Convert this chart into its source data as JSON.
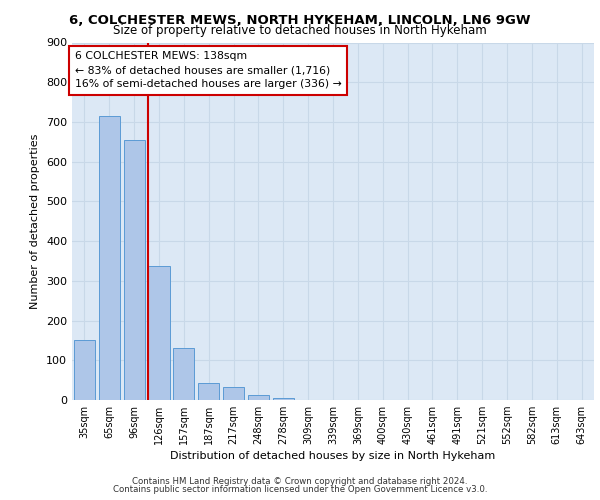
{
  "title1": "6, COLCHESTER MEWS, NORTH HYKEHAM, LINCOLN, LN6 9GW",
  "title2": "Size of property relative to detached houses in North Hykeham",
  "xlabel": "Distribution of detached houses by size in North Hykeham",
  "ylabel": "Number of detached properties",
  "bar_labels": [
    "35sqm",
    "65sqm",
    "96sqm",
    "126sqm",
    "157sqm",
    "187sqm",
    "217sqm",
    "248sqm",
    "278sqm",
    "309sqm",
    "339sqm",
    "369sqm",
    "400sqm",
    "430sqm",
    "461sqm",
    "491sqm",
    "521sqm",
    "552sqm",
    "582sqm",
    "613sqm",
    "643sqm"
  ],
  "bar_values": [
    152,
    714,
    655,
    338,
    130,
    44,
    32,
    13,
    5,
    0,
    0,
    0,
    0,
    0,
    0,
    0,
    0,
    0,
    0,
    0,
    0
  ],
  "bar_color": "#aec6e8",
  "bar_edge_color": "#5b9bd5",
  "vline_color": "#cc0000",
  "vline_pos": 2.55,
  "annotation_text": "6 COLCHESTER MEWS: 138sqm\n← 83% of detached houses are smaller (1,716)\n16% of semi-detached houses are larger (336) →",
  "annotation_box_color": "#ffffff",
  "annotation_box_edge": "#cc0000",
  "ylim": [
    0,
    900
  ],
  "yticks": [
    0,
    100,
    200,
    300,
    400,
    500,
    600,
    700,
    800,
    900
  ],
  "grid_color": "#c8d8e8",
  "bg_color": "#dce8f5",
  "footer1": "Contains HM Land Registry data © Crown copyright and database right 2024.",
  "footer2": "Contains public sector information licensed under the Open Government Licence v3.0."
}
